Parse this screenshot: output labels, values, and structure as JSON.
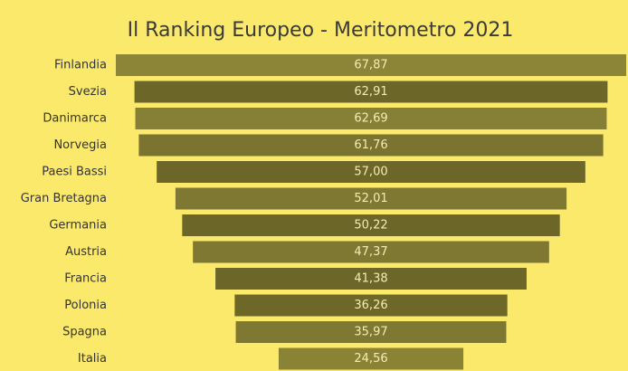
{
  "chart_data": {
    "type": "funnel",
    "title": "Il Ranking Europeo - Meritometro 2021",
    "categories": [
      "Finlandia",
      "Svezia",
      "Danimarca",
      "Norvegia",
      "Paesi Bassi",
      "Gran Bretagna",
      "Germania",
      "Austria",
      "Francia",
      "Polonia",
      "Spagna",
      "Italia"
    ],
    "values": [
      67.87,
      62.91,
      62.69,
      61.76,
      57.0,
      52.01,
      50.22,
      47.37,
      41.38,
      36.26,
      35.97,
      24.56
    ],
    "value_labels": [
      "67,87",
      "62,91",
      "62,69",
      "61,76",
      "57,00",
      "52,01",
      "50,22",
      "47,37",
      "41,38",
      "36,26",
      "35,97",
      "24,56"
    ],
    "colors": [
      "#8c8436",
      "#6c6628",
      "#868036",
      "#7a7430",
      "#6c6628",
      "#7e7832",
      "#6c6628",
      "#7e7832",
      "#6c6628",
      "#6e6828",
      "#7e7832",
      "#8a8336"
    ]
  }
}
